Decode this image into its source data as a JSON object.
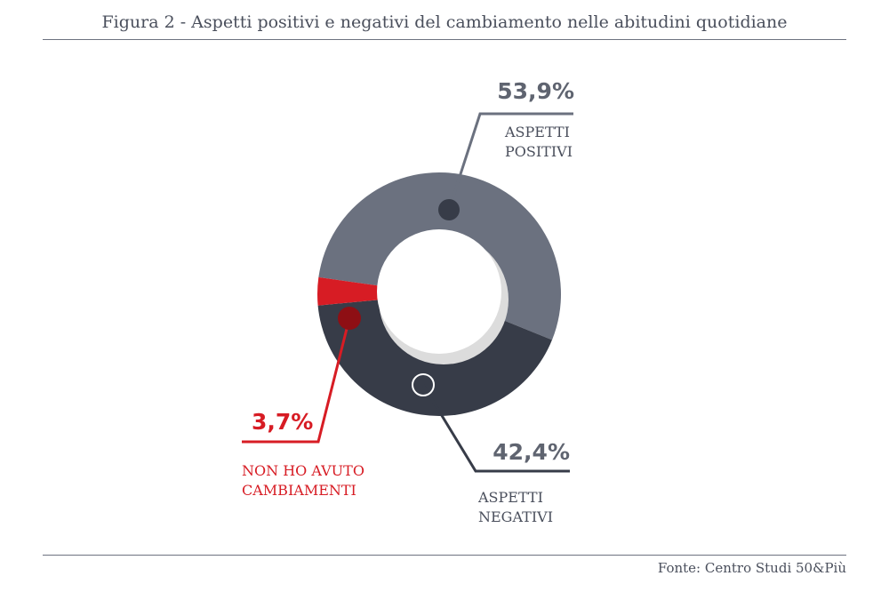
{
  "header": {
    "title": "Figura 2 - Aspetti positivi e negativi del cambiamento nelle abitudini quotidiane"
  },
  "footer": {
    "source": "Fonte: Centro Studi 50&Più"
  },
  "colors": {
    "positivi": "#6b717f",
    "negativi": "#373c48",
    "nessuno": "#d71c24",
    "hole_shadow": "#dcdcdc"
  },
  "chart_data": {
    "type": "pie",
    "donut": true,
    "slices": [
      {
        "label_lines": [
          "ASPETTI",
          "POSITIVI"
        ],
        "value": 53.9,
        "value_label": "53,9%",
        "color": "#6b717f"
      },
      {
        "label_lines": [
          "ASPETTI",
          "NEGATIVI"
        ],
        "value": 42.4,
        "value_label": "42,4%",
        "color": "#373c48"
      },
      {
        "label_lines": [
          "NON HO AVUTO",
          "CAMBIAMENTI"
        ],
        "value": 3.7,
        "value_label": "3,7%",
        "color": "#d71c24"
      }
    ]
  }
}
